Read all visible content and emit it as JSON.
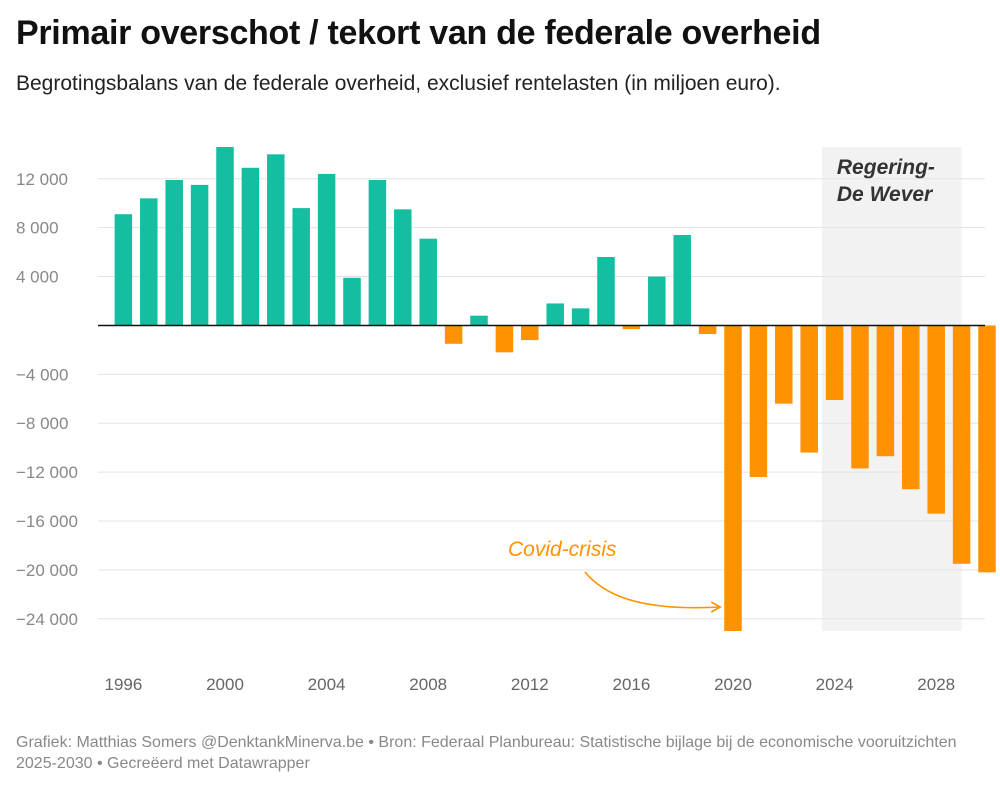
{
  "title": "Primair overschot / tekort van de federale overheid",
  "subtitle": "Begrotingsbalans van de federale overheid, exclusief rentelasten (in miljoen euro).",
  "footer": "Grafiek: Matthias Somers @DenktankMinerva.be • Bron: Federaal Planbureau: Statistische bijlage bij de economische vooruitzichten 2025-2030 • Gecreëerd met Datawrapper",
  "colors": {
    "positive": "#13bea1",
    "negative": "#ff9200",
    "region": "#f2f2f2",
    "grid": "#e3e3e3",
    "zero": "#111111"
  },
  "chart_data": {
    "type": "bar",
    "x": [
      1996,
      1997,
      1998,
      1999,
      2000,
      2001,
      2002,
      2003,
      2004,
      2005,
      2006,
      2007,
      2008,
      2009,
      2010,
      2011,
      2012,
      2013,
      2014,
      2015,
      2016,
      2017,
      2018,
      2019,
      2020,
      2021,
      2022,
      2023,
      2024,
      2025,
      2026,
      2027,
      2028,
      2029,
      2030
    ],
    "values": [
      9100,
      10400,
      11900,
      11500,
      14600,
      12900,
      14000,
      9600,
      12400,
      3900,
      11900,
      9500,
      7100,
      -1500,
      800,
      -2200,
      -1200,
      1800,
      1400,
      5600,
      -300,
      4000,
      7400,
      -700,
      -25000,
      -12400,
      -6400,
      -10400,
      -6100,
      -11700,
      -10700,
      -13400,
      -15400,
      -19500,
      -20200
    ],
    "ylim": [
      -25000,
      14600
    ],
    "y_ticks": [
      12000,
      8000,
      4000,
      -4000,
      -8000,
      -12000,
      -16000,
      -20000,
      -24000
    ],
    "y_tick_labels": [
      "12 000",
      "8 000",
      "4 000",
      "−4 000",
      "−8 000",
      "−12 000",
      "−16 000",
      "−20 000",
      "−24 000"
    ],
    "x_ticks": [
      1996,
      2000,
      2004,
      2008,
      2012,
      2016,
      2020,
      2024,
      2028
    ],
    "x_tick_labels": [
      "1996",
      "2000",
      "2004",
      "2008",
      "2012",
      "2016",
      "2020",
      "2024",
      "2028"
    ],
    "grid": true,
    "highlight_region": {
      "from": 2024,
      "to": 2029.5,
      "label_line1": "Regering-",
      "label_line2": "De Wever"
    },
    "annotation": {
      "text": "Covid-crisis",
      "points_to": 2020
    }
  }
}
